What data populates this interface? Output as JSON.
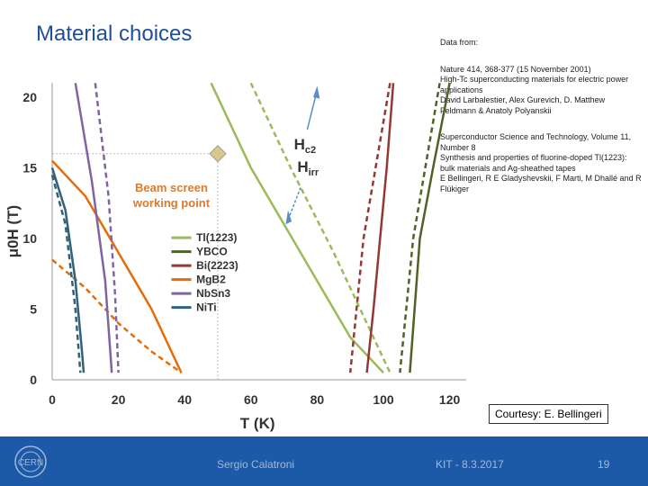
{
  "slide": {
    "title": "Material choices",
    "references": [
      "Data from:",
      "Nature 414, 368-377 (15 November 2001)\nHigh-Tc superconducting materials for electric power applications\nDavid Larbalestier, Alex Gurevich, D. Matthew Feldmann & Anatoly Polyanskii",
      "Superconductor Science and Technology, Volume 11, Number 8\nSynthesis and properties of fluorine-doped Tl(1223): bulk materials and Ag-sheathed tapes\nE Bellingeri, R E Gladyshevskii, F Marti, M Dhallé and R Flükiger"
    ],
    "courtesy": "Courtesy: E. Bellingeri",
    "footer": {
      "presenter": "Sergio Calatroni",
      "event": "KIT - 8.3.2017",
      "page": "19"
    },
    "logo_text": "CERN"
  },
  "chart_data": {
    "type": "line",
    "xlabel": "T (K)",
    "ylabel": "μ0H (T)",
    "xlim": [
      0,
      125
    ],
    "ylim": [
      0,
      21
    ],
    "xticks": [
      0,
      20,
      40,
      60,
      80,
      100,
      120
    ],
    "yticks": [
      0,
      5,
      10,
      15,
      20
    ],
    "legend_position": "center-left",
    "annotations": {
      "point_label": "Beam screen\nworking point",
      "point": {
        "x": 50,
        "y": 16
      },
      "hc2_label": "Hc2",
      "hirr_label": "Hirr",
      "hc2_sub": "c2",
      "hirr_sub": "irr",
      "h_main": "H"
    },
    "series": [
      {
        "name": "Tl(1223)",
        "color": "#9bbb59",
        "hc2": [
          [
            48,
            21
          ],
          [
            60,
            15
          ],
          [
            75,
            9
          ],
          [
            90,
            3
          ],
          [
            100,
            0.5
          ]
        ],
        "hirr": [
          [
            60,
            21
          ],
          [
            72,
            15
          ],
          [
            85,
            9
          ],
          [
            95,
            4
          ],
          [
            101,
            1
          ],
          [
            102,
            0.5
          ]
        ]
      },
      {
        "name": "YBCO",
        "color": "#4f6228",
        "hc2": [
          [
            120,
            21
          ],
          [
            115,
            15
          ],
          [
            111,
            10
          ],
          [
            108,
            0.5
          ]
        ],
        "hirr": [
          [
            117,
            21
          ],
          [
            109,
            10
          ],
          [
            105,
            0.5
          ]
        ]
      },
      {
        "name": "Bi(2223)",
        "color": "#953735",
        "hc2": [
          [
            103,
            21
          ],
          [
            101,
            15
          ],
          [
            99,
            10
          ],
          [
            97,
            5
          ],
          [
            95,
            0.5
          ]
        ],
        "hirr": [
          [
            102,
            21
          ],
          [
            94,
            10
          ],
          [
            90,
            0.5
          ]
        ]
      },
      {
        "name": "MgB2",
        "color": "#e46c0a",
        "hc2": [
          [
            0,
            15.5
          ],
          [
            10,
            13
          ],
          [
            20,
            9
          ],
          [
            30,
            5
          ],
          [
            39,
            0.5
          ]
        ],
        "hirr": [
          [
            0,
            8.5
          ],
          [
            10,
            6.5
          ],
          [
            20,
            4
          ],
          [
            30,
            2
          ],
          [
            39,
            0.5
          ]
        ]
      },
      {
        "name": "NbSn3",
        "color": "#8064a2",
        "hc2": [
          [
            7,
            21
          ],
          [
            12,
            14
          ],
          [
            16,
            7
          ],
          [
            18,
            0.5
          ]
        ],
        "hirr": [
          [
            13,
            21
          ],
          [
            17,
            13
          ],
          [
            19,
            6
          ],
          [
            20,
            0.5
          ]
        ]
      },
      {
        "name": "NiTi",
        "color": "#31627a",
        "hc2": [
          [
            0,
            15
          ],
          [
            4,
            12
          ],
          [
            7,
            7
          ],
          [
            9,
            2
          ],
          [
            9.5,
            0.5
          ]
        ],
        "hirr": [
          [
            0,
            14.5
          ],
          [
            4,
            11
          ],
          [
            7,
            5
          ],
          [
            8.5,
            0.5
          ]
        ]
      }
    ]
  }
}
